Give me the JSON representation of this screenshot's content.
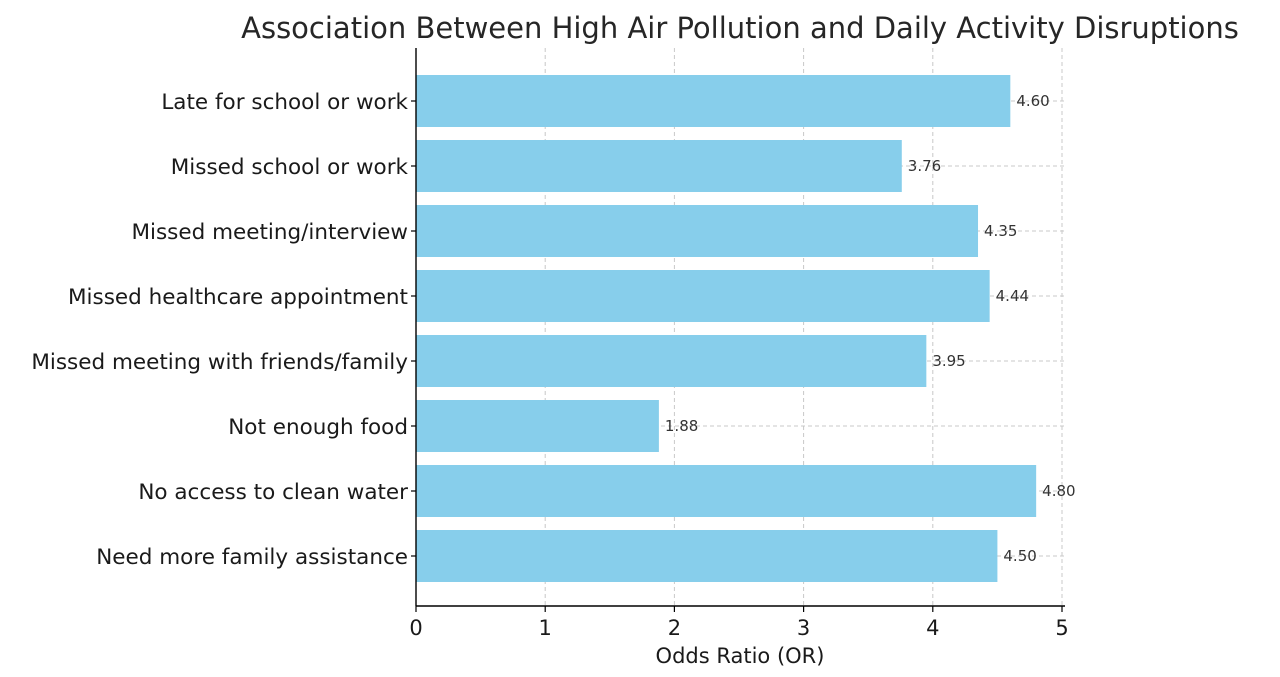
{
  "chart_data": {
    "type": "bar",
    "orientation": "horizontal",
    "title": "Association Between High Air Pollution and Daily Activity Disruptions",
    "xlabel": "Odds Ratio (OR)",
    "ylabel": "",
    "xlim": [
      0,
      5
    ],
    "xticks": [
      "0",
      "1",
      "2",
      "3",
      "4",
      "5"
    ],
    "categories": [
      "Late for school or work",
      "Missed school or work",
      "Missed meeting/interview",
      "Missed healthcare appointment",
      "Missed meeting with friends/family",
      "Not enough food",
      "No access to clean water",
      "Need more family assistance"
    ],
    "values": [
      4.6,
      3.76,
      4.35,
      4.44,
      3.95,
      1.88,
      4.8,
      4.5
    ],
    "value_labels": [
      "4.60",
      "3.76",
      "4.35",
      "4.44",
      "3.95",
      "1.88",
      "4.80",
      "4.50"
    ],
    "bar_color": "#87CEEB",
    "grid": true,
    "legend": "none"
  }
}
